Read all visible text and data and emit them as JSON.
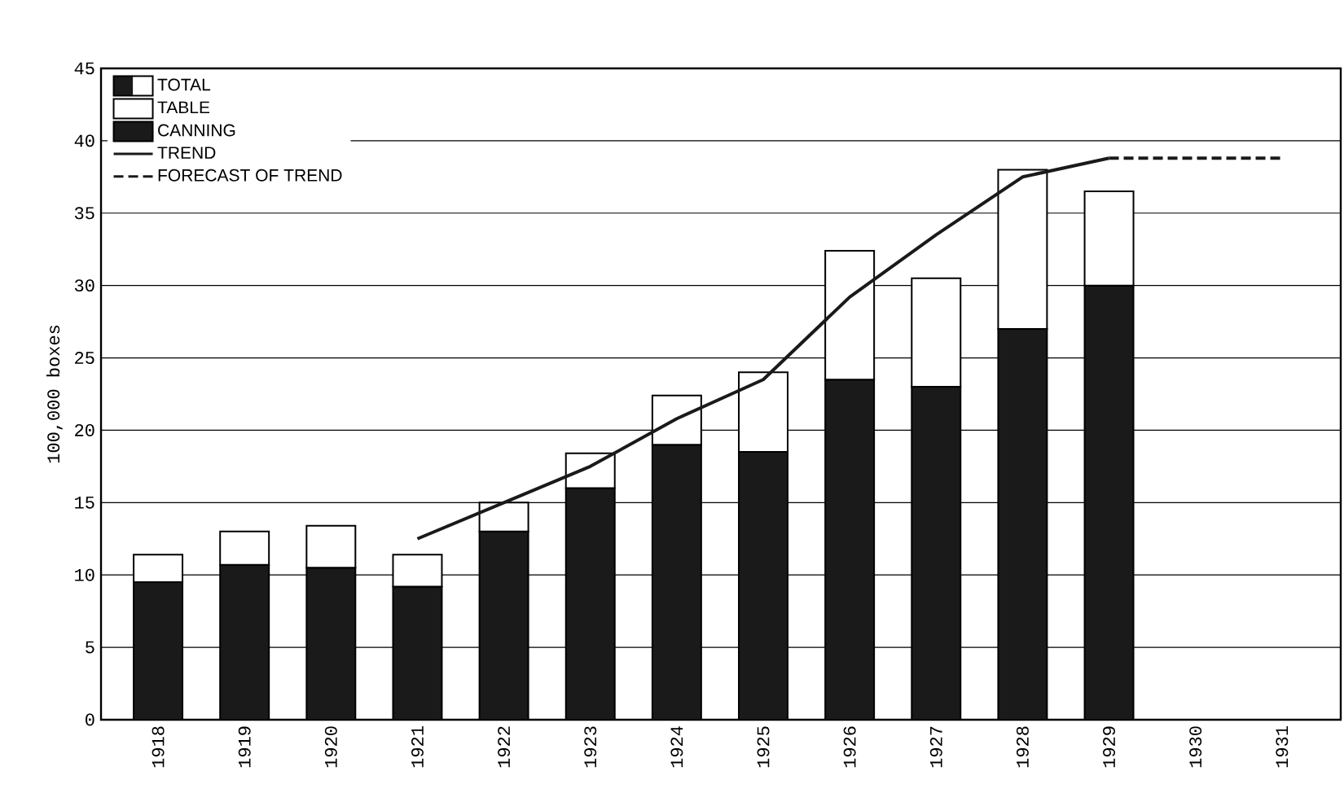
{
  "chart_data": {
    "type": "bar",
    "stacked": true,
    "ylabel": "100,000 boxes",
    "categories": [
      "1918",
      "1919",
      "1920",
      "1921",
      "1922",
      "1923",
      "1924",
      "1925",
      "1926",
      "1927",
      "1928",
      "1929",
      "1930",
      "1931"
    ],
    "series": [
      {
        "name": "CANNING",
        "color": "#1a1a1a",
        "values": [
          9.5,
          10.7,
          10.5,
          9.2,
          13,
          16,
          19,
          18.5,
          23.5,
          23,
          27,
          30,
          null,
          null
        ]
      },
      {
        "name": "TABLE",
        "color": "#ffffff",
        "values": [
          1.9,
          2.3,
          2.9,
          2.2,
          2.0,
          2.4,
          3.4,
          5.5,
          8.9,
          7.5,
          11,
          6.5,
          null,
          null
        ]
      },
      {
        "name": "TREND",
        "type": "line",
        "color": "#1a1a1a",
        "line_style": "solid",
        "values": [
          null,
          null,
          null,
          12.5,
          15,
          17.5,
          20.8,
          23.5,
          29.2,
          33.5,
          37.5,
          38.8,
          null,
          null
        ]
      },
      {
        "name": "FORECAST OF TREND",
        "type": "line",
        "color": "#1a1a1a",
        "line_style": "dashed",
        "values": [
          null,
          null,
          null,
          null,
          null,
          null,
          null,
          null,
          null,
          null,
          null,
          38.8,
          38.8,
          38.8
        ]
      }
    ],
    "annotations": [
      "TOTAL"
    ],
    "ylim": [
      0,
      45
    ],
    "yticks": [
      0,
      5,
      10,
      15,
      20,
      25,
      30,
      35,
      40,
      45
    ],
    "grid": "y",
    "legend": "top left"
  }
}
